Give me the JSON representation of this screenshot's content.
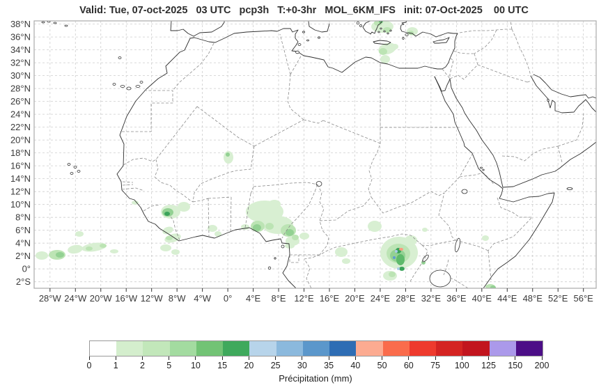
{
  "title": "Valid: Tue, 07-oct-2025   03 UTC   pcp3h   T:+0-3hr   MOL_6KM_IFS   init: 07-Oct-2025    00 UTC",
  "map": {
    "lat_labels": [
      "38°N",
      "36°N",
      "34°N",
      "32°N",
      "30°N",
      "28°N",
      "26°N",
      "24°N",
      "22°N",
      "20°N",
      "18°N",
      "16°N",
      "14°N",
      "12°N",
      "10°N",
      "8°N",
      "6°N",
      "4°N",
      "2°N",
      "0°",
      "2°S"
    ],
    "lon_labels": [
      "28°W",
      "24°W",
      "20°W",
      "16°W",
      "12°W",
      "8°W",
      "4°W",
      "0°",
      "4°E",
      "8°E",
      "12°E",
      "16°E",
      "20°E",
      "24°E",
      "28°E",
      "32°E",
      "36°E",
      "40°E",
      "44°E",
      "48°E",
      "52°E",
      "56°E"
    ],
    "palette": {
      "light": "#d8efd2",
      "light_medium": "#bce4b4",
      "medium": "#93d193",
      "medium_dark": "#5eba6c",
      "dark": "#3aa35a",
      "blue_light": "#a9cce6",
      "blue": "#5f9bd0",
      "blue_deep": "#2e6db4",
      "salmon": "#fb9a7e"
    }
  },
  "legend": {
    "tick_labels": [
      "0",
      "1",
      "2",
      "5",
      "10",
      "15",
      "20",
      "25",
      "30",
      "35",
      "40",
      "50",
      "60",
      "75",
      "100",
      "125",
      "150",
      "200"
    ],
    "colors": [
      "#ffffff",
      "#d4eecd",
      "#c2e7ba",
      "#a3dba0",
      "#72c375",
      "#3fa95c",
      "#b7d4ea",
      "#8bb9dd",
      "#5b97cb",
      "#2e6db4",
      "#fcab91",
      "#fa6c4c",
      "#ee3a2d",
      "#d42422",
      "#c2151e",
      "#ab99ea",
      "#4c0e87"
    ],
    "caption": "Précipitation (mm)"
  }
}
